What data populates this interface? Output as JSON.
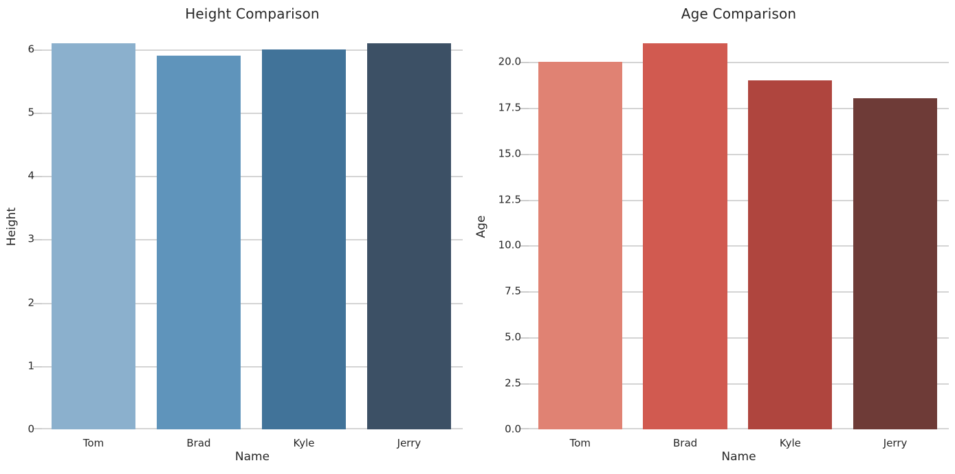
{
  "figure": {
    "background_color": "#ffffff"
  },
  "style": {
    "text_color": "#262626",
    "grid_color": "#d4d4d4",
    "tick_mark_color": "#cccccc"
  },
  "chart_data": [
    {
      "type": "bar",
      "title": "Height Comparison",
      "xlabel": "Name",
      "ylabel": "Height",
      "categories": [
        "Tom",
        "Brad",
        "Kyle",
        "Jerry"
      ],
      "values": [
        6.1,
        5.9,
        6.0,
        6.1
      ],
      "bar_colors": [
        "#8bb0cd",
        "#5f94bb",
        "#417399",
        "#3c5065"
      ],
      "ylim": [
        0,
        6.4
      ],
      "yticks": [
        0,
        1,
        2,
        3,
        4,
        5,
        6
      ],
      "ytick_labels": [
        "0",
        "1",
        "2",
        "3",
        "4",
        "5",
        "6"
      ],
      "grid": true,
      "legend_position": "none"
    },
    {
      "type": "bar",
      "title": "Age Comparison",
      "xlabel": "Name",
      "ylabel": "Age",
      "categories": [
        "Tom",
        "Brad",
        "Kyle",
        "Jerry"
      ],
      "values": [
        20,
        21,
        19,
        18
      ],
      "bar_colors": [
        "#e08273",
        "#d15a50",
        "#af453e",
        "#6e3b37"
      ],
      "ylim": [
        0,
        22.05
      ],
      "yticks": [
        0,
        2.5,
        5,
        7.5,
        10,
        12.5,
        15,
        17.5,
        20
      ],
      "ytick_labels": [
        "0.0",
        "2.5",
        "5.0",
        "7.5",
        "10.0",
        "12.5",
        "15.0",
        "17.5",
        "20.0"
      ],
      "grid": true,
      "legend_position": "none"
    }
  ]
}
